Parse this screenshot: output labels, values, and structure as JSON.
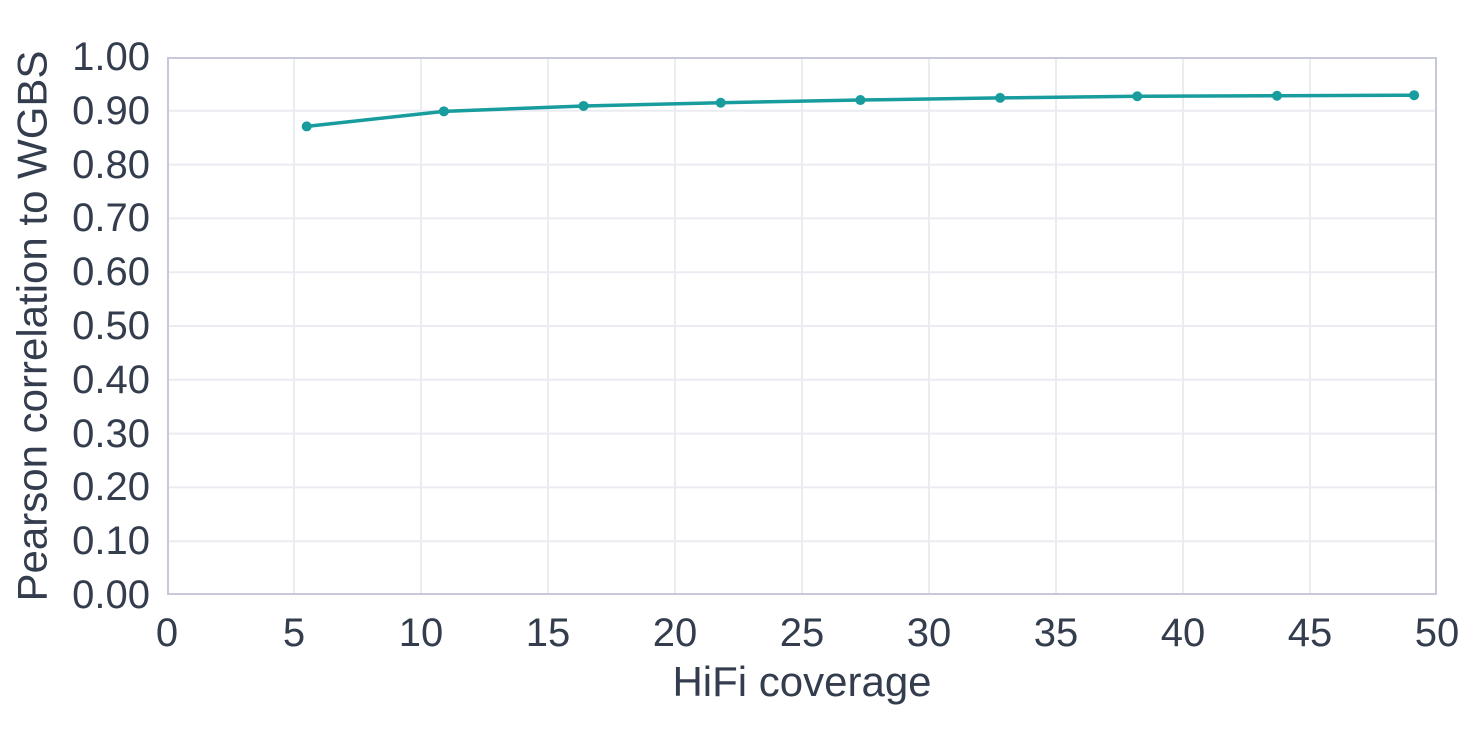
{
  "chart_data": {
    "type": "line",
    "title": "",
    "xlabel": "HiFi coverage",
    "ylabel": "Pearson correlation to WGBS",
    "x": [
      5.5,
      10.9,
      16.4,
      21.8,
      27.3,
      32.8,
      38.2,
      43.7,
      49.1
    ],
    "y": [
      0.871,
      0.899,
      0.909,
      0.915,
      0.92,
      0.924,
      0.927,
      0.928,
      0.929
    ],
    "xlim": [
      0,
      50
    ],
    "ylim": [
      0.0,
      1.0
    ],
    "x_ticks": [
      0,
      5,
      10,
      15,
      20,
      25,
      30,
      35,
      40,
      45,
      50
    ],
    "x_tick_labels": [
      "0",
      "5",
      "10",
      "15",
      "20",
      "25",
      "30",
      "35",
      "40",
      "45",
      "50"
    ],
    "y_ticks": [
      0.0,
      0.1,
      0.2,
      0.3,
      0.4,
      0.5,
      0.6,
      0.7,
      0.8,
      0.9,
      1.0
    ],
    "y_tick_labels": [
      "0.00",
      "0.10",
      "0.20",
      "0.30",
      "0.40",
      "0.50",
      "0.60",
      "0.70",
      "0.80",
      "0.90",
      "1.00"
    ],
    "grid": true,
    "legend": "none",
    "colors": {
      "line": "#189c9e",
      "marker": "#189c9e",
      "text": "#333d4d",
      "grid": "#ebecf2",
      "border": "#c7c9da",
      "background": "#ffffff"
    }
  }
}
